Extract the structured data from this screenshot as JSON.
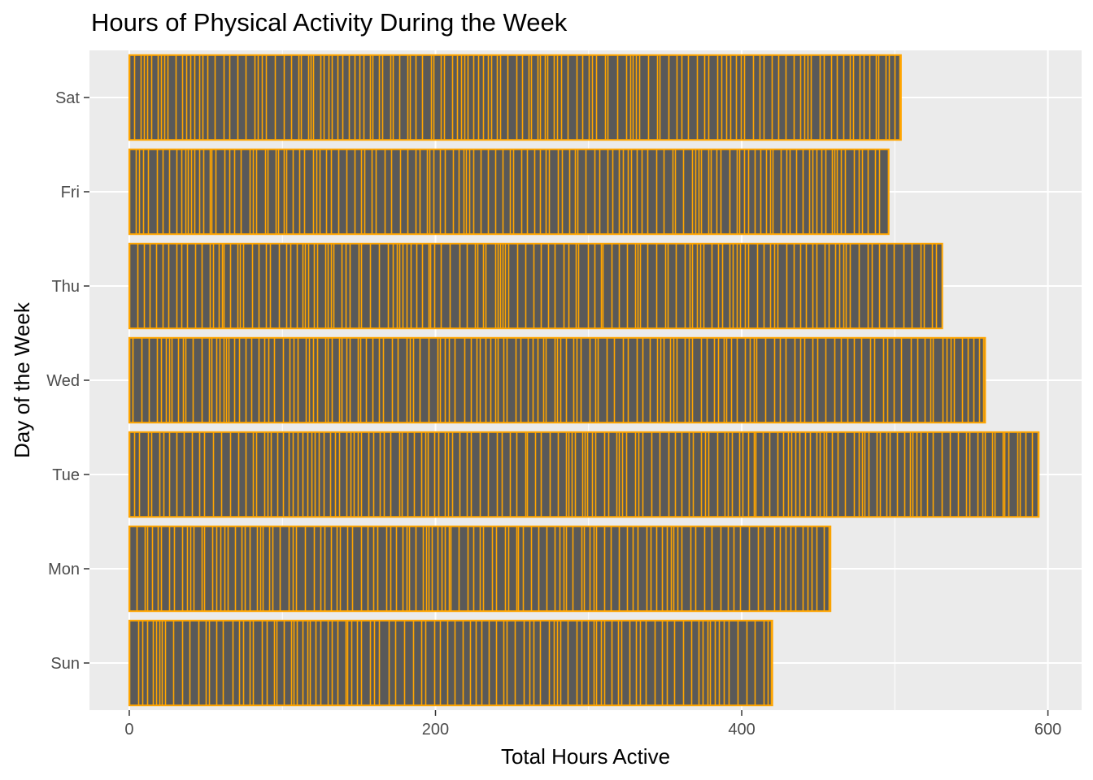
{
  "chart_data": {
    "type": "bar",
    "orientation": "horizontal",
    "title": "Hours of Physical Activity During the Week",
    "xlabel": "Total Hours Active",
    "ylabel": "Day of the Week",
    "categories": [
      "Sun",
      "Mon",
      "Tue",
      "Wed",
      "Thu",
      "Fri",
      "Sat"
    ],
    "values": [
      420,
      458,
      594,
      559,
      531,
      496,
      504
    ],
    "xlim": [
      -26,
      622
    ],
    "x_ticks": [
      0,
      200,
      400,
      600
    ],
    "x_tick_labels": [
      "0",
      "200",
      "400",
      "600"
    ],
    "grid": true,
    "legend": "none",
    "colors": {
      "panel_background": "#ebebeb",
      "grid": "#ffffff",
      "bar_fill": "#595959",
      "bar_outline": "#ffa500"
    }
  }
}
